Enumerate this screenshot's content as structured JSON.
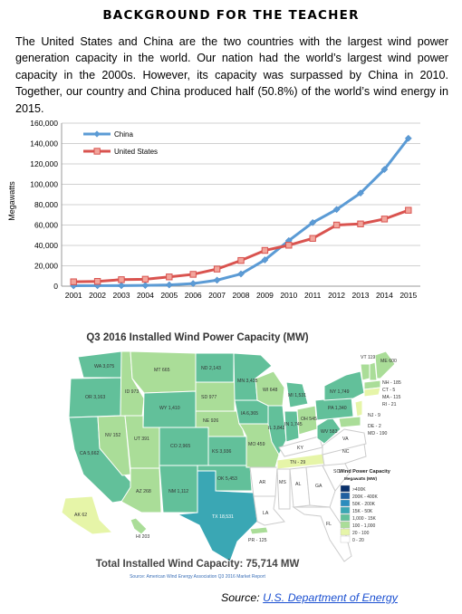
{
  "heading": "BACKGROUND FOR THE TEACHER",
  "intro": "The United States and China are the two countries with the largest wind power generation capacity in the world.  Our nation had the world’s largest wind power capacity in the 2000s. However, its capacity was surpassed by China in 2010. Together, our country and China produced half (50.8%) of the world’s wind energy in 2015.",
  "chart_data": [
    {
      "type": "line",
      "ylabel": "Megawatts",
      "x": [
        "2001",
        "2002",
        "2003",
        "2004",
        "2005",
        "2006",
        "2007",
        "2008",
        "2009",
        "2010",
        "2011",
        "2012",
        "2013",
        "2014",
        "2015"
      ],
      "ylim": [
        0,
        160000
      ],
      "yticks": [
        "0",
        "20,000",
        "40,000",
        "60,000",
        "80,000",
        "100,000",
        "120,000",
        "140,000",
        "160,000"
      ],
      "grid": true,
      "legend": "top-left",
      "series": [
        {
          "name": "China",
          "color": "#5b9bd5",
          "values": [
            400,
            500,
            570,
            760,
            1270,
            2600,
            5900,
            12000,
            25800,
            44700,
            62400,
            75300,
            91400,
            114600,
            145100
          ]
        },
        {
          "name": "United States",
          "color": "#d9534f",
          "values": [
            4300,
            4700,
            6400,
            6800,
            9100,
            11600,
            16800,
            25200,
            35100,
            40200,
            46900,
            60000,
            61100,
            65900,
            74500
          ]
        }
      ]
    }
  ],
  "map": {
    "title": "Q3 2016 Installed Wind Power Capacity (MW)",
    "legend_title": "Wind Power Capacity",
    "legend_subtitle": "Megawatts (MW)",
    "legend_items": [
      {
        "label": ">400K",
        "color": "#08306b"
      },
      {
        "label": "200K - 400K",
        "color": "#1f5fa0"
      },
      {
        "label": "50K - 200K",
        "color": "#2b8cbe"
      },
      {
        "label": "15K - 50K",
        "color": "#3aa7b4"
      },
      {
        "label": "1,000 - 15K",
        "color": "#62c09a"
      },
      {
        "label": "100 - 1,000",
        "color": "#aadd98"
      },
      {
        "label": "20 - 100",
        "color": "#e6f5a8"
      },
      {
        "label": "0 - 20",
        "color": "#ffffff"
      }
    ],
    "labels": {
      "WA": "WA 3,075",
      "OR": "OR 3,163",
      "ID": "ID 973",
      "MT": "MT 665",
      "WY": "WY 1,410",
      "CA": "CA 5,662",
      "NV": "NV 152",
      "UT": "UT 391",
      "AZ": "AZ 268",
      "CO": "CO 2,965",
      "NM": "NM 1,112",
      "ND": "ND 2,143",
      "SD": "SD 977",
      "NE": "NE 926",
      "KS": "KS 3,936",
      "OK": "OK 5,453",
      "TX": "TX 18,531",
      "MN": "MN 3,435",
      "IA": "IA 6,365",
      "MO": "MO 459",
      "AR": "AR",
      "LA": "LA",
      "WI": "WI 648",
      "IL": "IL 3,842",
      "MI": "MI 1,531",
      "IN": "IN 1,745",
      "OH": "OH 545",
      "KY": "KY",
      "TN": "TN - 29",
      "MS": "MS",
      "AL": "AL",
      "GA": "GA",
      "FL": "FL",
      "SC": "SC",
      "NC": "NC",
      "VA": "VA",
      "WV": "WV 583",
      "PA": "PA 1,340",
      "NY": "NY 1,749",
      "VT": "VT 119",
      "ME": "ME 600",
      "NH": "NH - 185",
      "CT": "CT - 5",
      "MA": "MA - 115",
      "RI": "RI - 21",
      "NJ": "NJ - 9",
      "DE": "DE - 2",
      "MD": "MD - 190",
      "AK": "AK 62",
      "HI": "HI 203",
      "PR": "PR - 125"
    },
    "total": "Total Installed Wind Capacity: 75,714 MW",
    "source": "Source: American Wind Energy Association Q3 2016 Market Report"
  },
  "source": {
    "label": "Source:",
    "link": "U.S. Department of Energy"
  }
}
